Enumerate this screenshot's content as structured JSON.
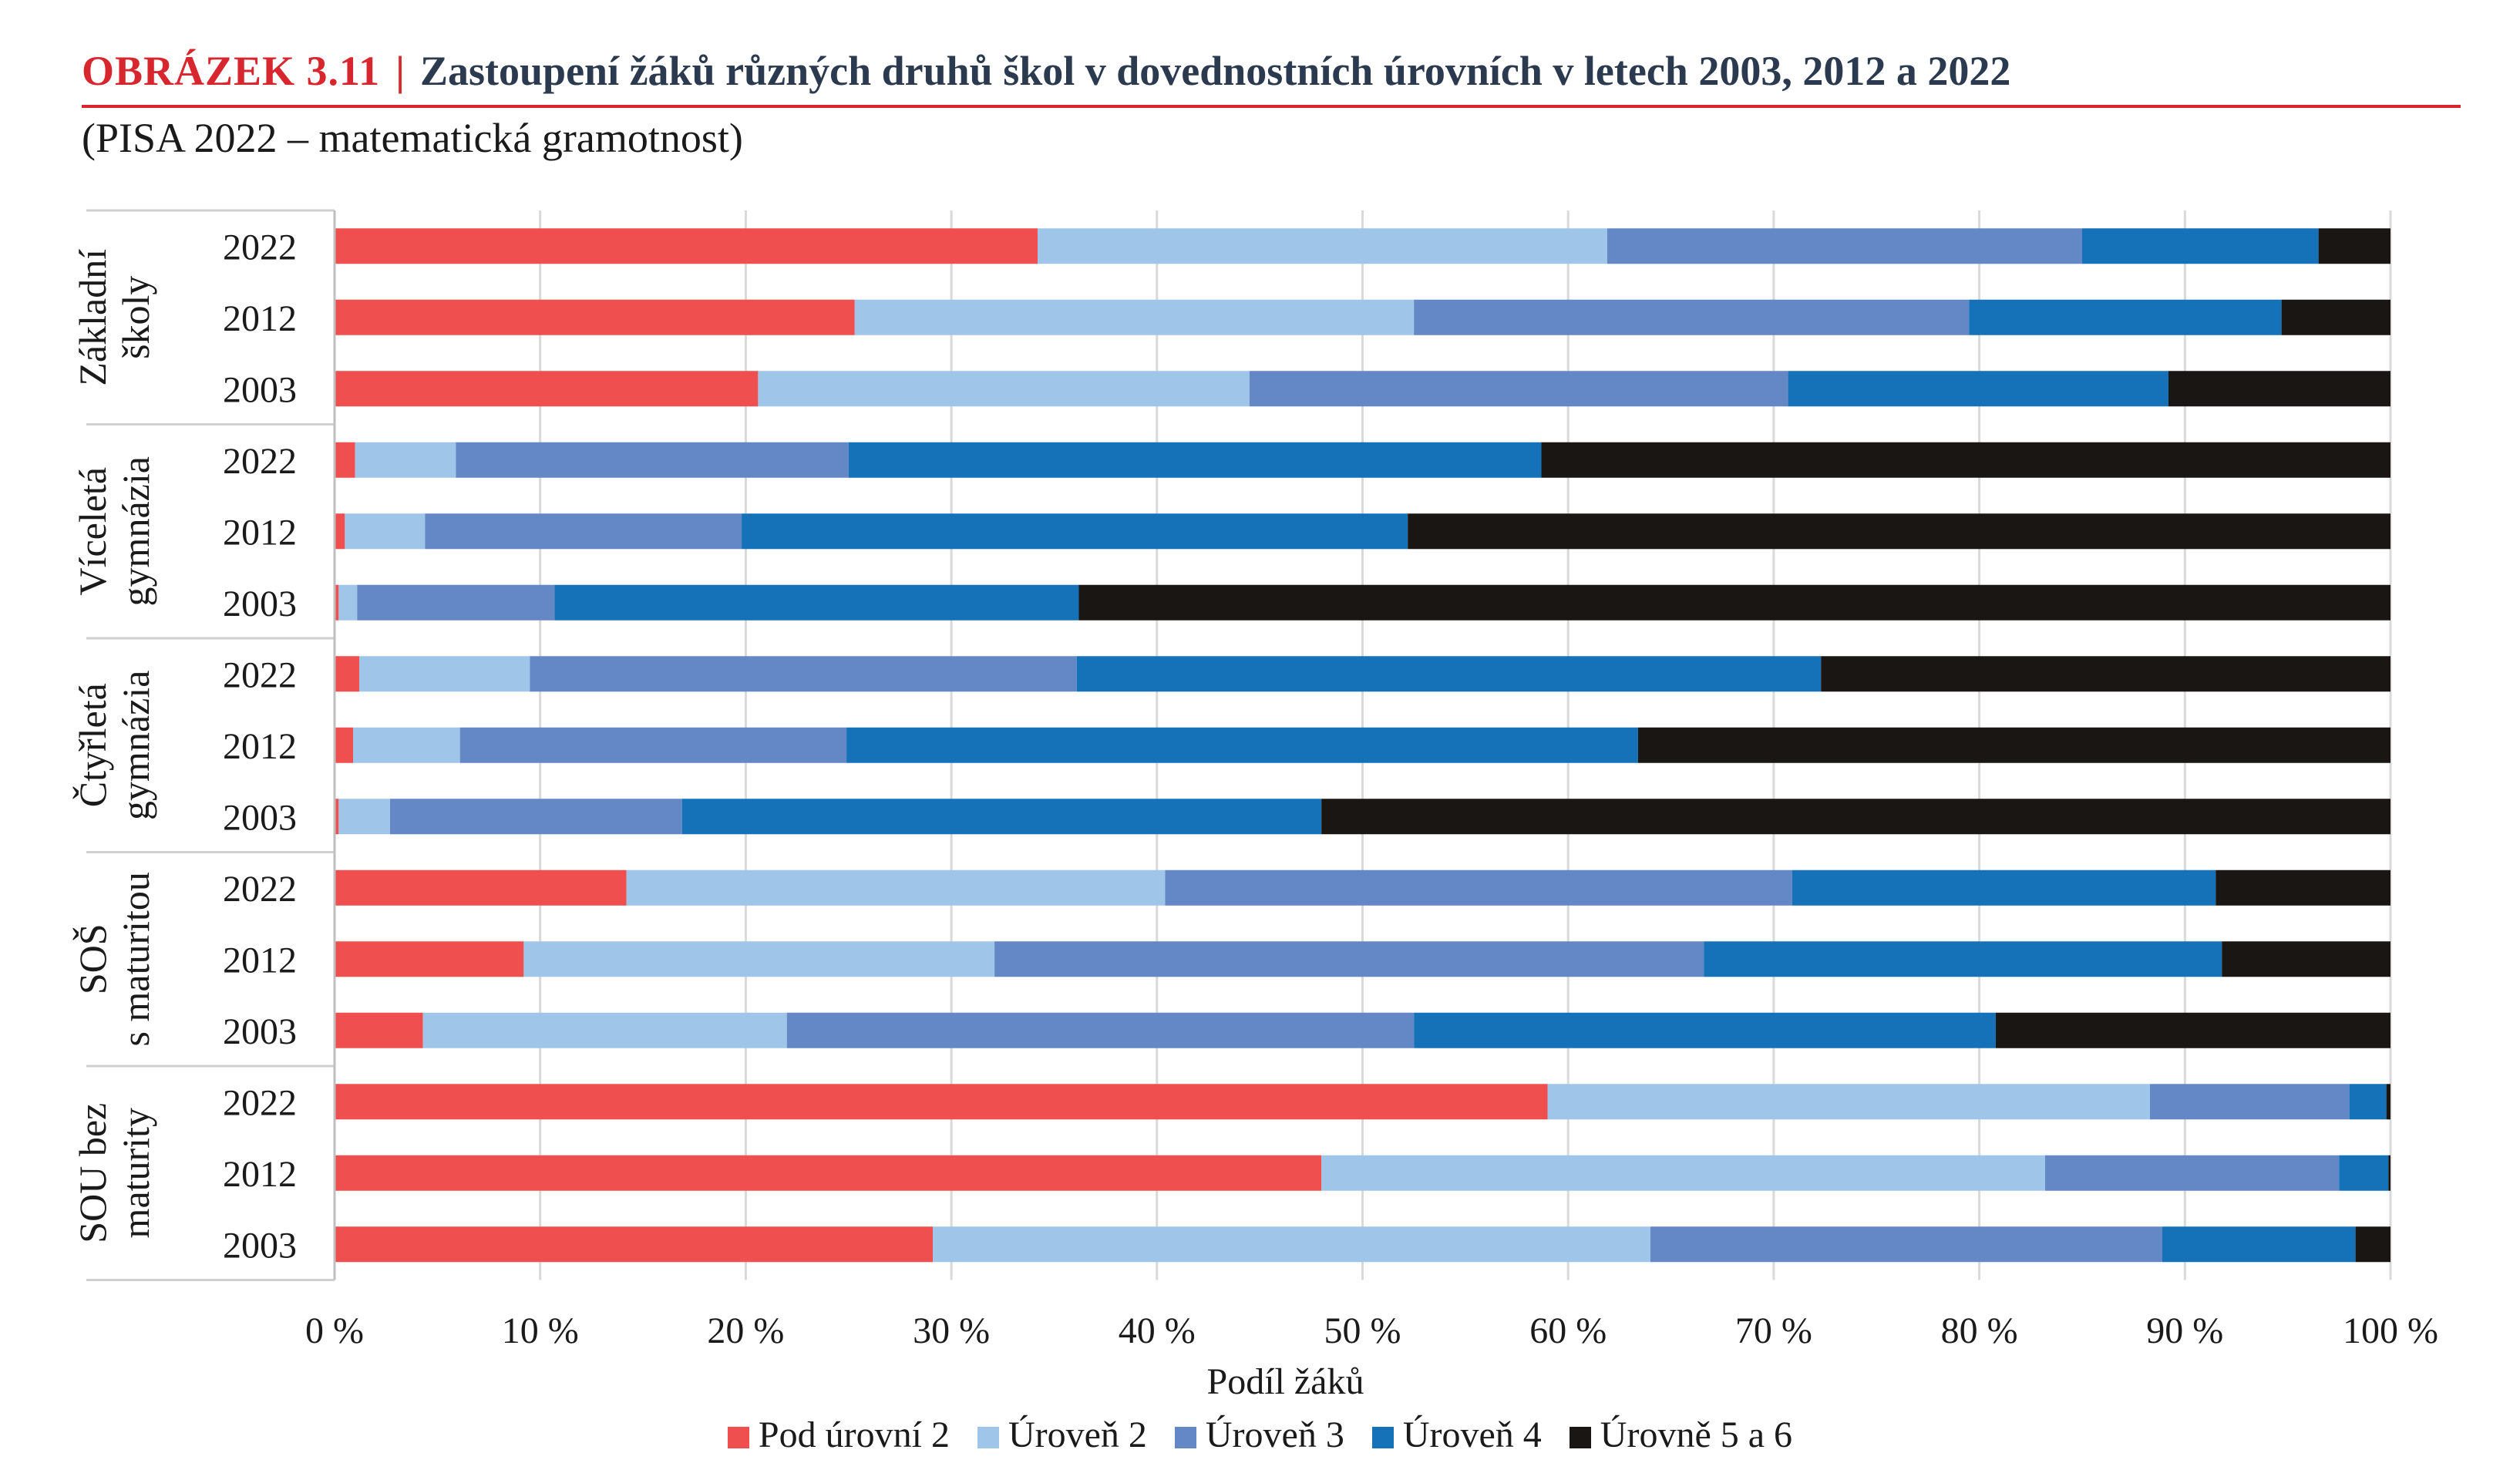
{
  "figure": {
    "label": "OBRÁZEK  3.11",
    "separator": "|",
    "title": "Zastoupení žáků různých druhů škol v dovednostních úrovních v letech 2003, 2012 a 2022",
    "subtitle": "(PISA 2022 – matematická gramotnost)"
  },
  "colors": {
    "accent": "#d8262e",
    "series": [
      "#ef4f4f",
      "#9fc6e8",
      "#6487c6",
      "#1571b8",
      "#1a1613"
    ]
  },
  "chart_data": {
    "type": "bar",
    "orientation": "horizontal",
    "stacked": true,
    "xlabel": "Podíl žáků",
    "xlim": [
      0,
      100
    ],
    "xticks": [
      "0 %",
      "10 %",
      "20 %",
      "30 %",
      "40 %",
      "50 %",
      "60 %",
      "70 %",
      "80 %",
      "90 %",
      "100 %"
    ],
    "legend_position": "bottom",
    "groups": [
      {
        "label_lines": [
          "Základní",
          "školy"
        ],
        "years": [
          "2022",
          "2012",
          "2003"
        ]
      },
      {
        "label_lines": [
          "Víceletá",
          "gymnázia"
        ],
        "years": [
          "2022",
          "2012",
          "2003"
        ]
      },
      {
        "label_lines": [
          "Čtyřletá",
          "gymnázia"
        ],
        "years": [
          "2022",
          "2012",
          "2003"
        ]
      },
      {
        "label_lines": [
          "SOŠ",
          "s maturitou"
        ],
        "years": [
          "2022",
          "2012",
          "2003"
        ]
      },
      {
        "label_lines": [
          "SOU bez",
          "maturity"
        ],
        "years": [
          "2022",
          "2012",
          "2003"
        ]
      }
    ],
    "series": [
      {
        "name": "Pod úrovní 2",
        "values": [
          34.2,
          25.3,
          20.6,
          1.0,
          0.5,
          0.2,
          1.2,
          0.9,
          0.2,
          14.2,
          9.2,
          4.3,
          59.0,
          48.0,
          29.1
        ]
      },
      {
        "name": "Úroveň 2",
        "values": [
          27.7,
          27.2,
          23.9,
          4.9,
          3.9,
          0.9,
          8.3,
          5.2,
          2.5,
          26.2,
          22.9,
          17.7,
          29.3,
          35.2,
          34.9
        ]
      },
      {
        "name": "Úroveň 3",
        "values": [
          23.1,
          27.0,
          26.2,
          19.1,
          15.4,
          9.6,
          26.6,
          18.8,
          14.2,
          30.5,
          34.5,
          30.5,
          9.7,
          14.3,
          24.9
        ]
      },
      {
        "name": "Úroveň 4",
        "values": [
          11.5,
          15.2,
          18.5,
          33.7,
          32.4,
          25.5,
          36.2,
          38.5,
          31.1,
          20.6,
          25.2,
          28.3,
          1.8,
          2.4,
          9.4
        ]
      },
      {
        "name": "Úrovně 5 a 6",
        "values": [
          3.5,
          5.3,
          10.8,
          41.3,
          47.8,
          63.8,
          27.7,
          36.6,
          52.0,
          8.5,
          8.2,
          19.2,
          0.2,
          0.1,
          1.7
        ]
      }
    ]
  }
}
